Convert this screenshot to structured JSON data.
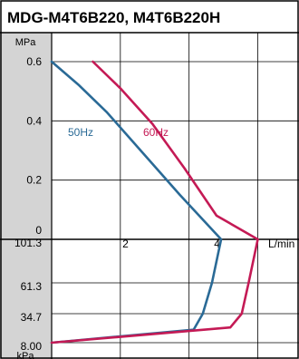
{
  "chart_data": {
    "type": "line",
    "title": "MDG-M4T6B220, M4T6B220H",
    "pressure_unit": "MPa",
    "vacuum_unit": "kPa",
    "flow_unit": "L/min",
    "pressure_ticks": [
      "0.6",
      "0.4",
      "0.2",
      "0"
    ],
    "vacuum_ticks": [
      "101.3",
      "61.3",
      "34.7",
      "8.00"
    ],
    "flow_ticks": [
      "2",
      "4"
    ],
    "pressure_ylim": [
      0,
      0.65
    ],
    "flow_xlim": [
      0,
      5.4
    ],
    "vacuum_levels": [
      101.3,
      61.3,
      34.7,
      8.0
    ],
    "grid": true,
    "series": [
      {
        "name": "50Hz",
        "color": "#2a6a96",
        "pressure_curve": [
          [
            0,
            0.6
          ],
          [
            0.6,
            0.52
          ],
          [
            1.2,
            0.43
          ],
          [
            2.0,
            0.29
          ],
          [
            2.8,
            0.15
          ],
          [
            3.7,
            0
          ]
        ],
        "vacuum_curve": [
          [
            3.7,
            101.3
          ],
          [
            3.5,
            61.3
          ],
          [
            3.3,
            34.7
          ],
          [
            3.1,
            20.0
          ],
          [
            0,
            8.0
          ]
        ]
      },
      {
        "name": "60Hz",
        "color": "#c41a55",
        "pressure_curve": [
          [
            0.9,
            0.6
          ],
          [
            1.5,
            0.51
          ],
          [
            2.2,
            0.39
          ],
          [
            2.9,
            0.24
          ],
          [
            3.6,
            0.08
          ],
          [
            4.5,
            0
          ]
        ],
        "vacuum_curve": [
          [
            4.5,
            101.3
          ],
          [
            4.3,
            61.3
          ],
          [
            4.15,
            34.7
          ],
          [
            3.9,
            22.0
          ],
          [
            0,
            8.0
          ]
        ]
      }
    ]
  }
}
